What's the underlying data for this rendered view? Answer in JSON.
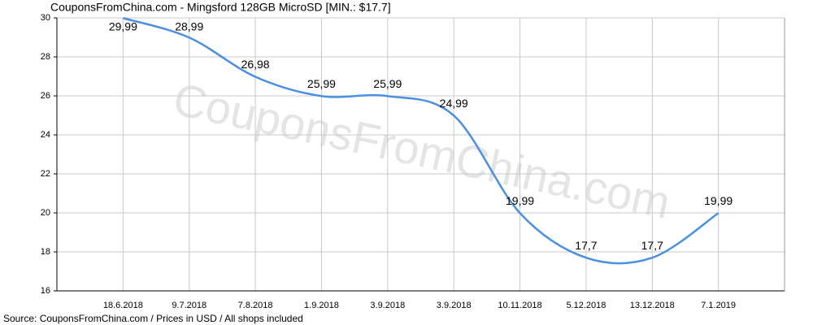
{
  "chart_data": {
    "type": "line",
    "title": "CouponsFromChina.com - Mingsford 128GB MicroSD [MIN.: $17.7]",
    "source": "Source: CouponsFromChina.com / Prices in USD / All shops included",
    "watermark": "CouponsFromChina.com",
    "categories": [
      "18.6.2018",
      "9.7.2018",
      "7.8.2018",
      "1.9.2018",
      "3.9.2018",
      "3.9.2018",
      "10.11.2018",
      "5.12.2018",
      "13.12.2018",
      "7.1.2019"
    ],
    "series": [
      {
        "color": "#4a8fe2",
        "values": [
          29.99,
          28.99,
          26.98,
          25.99,
          25.99,
          24.99,
          19.99,
          17.7,
          17.7,
          19.99
        ],
        "value_labels": [
          "29,99",
          "28,99",
          "26,98",
          "25,99",
          "25,99",
          "24,99",
          "19,99",
          "17,7",
          "17,7",
          "19,99"
        ]
      }
    ],
    "ylim": [
      16,
      30
    ],
    "yticks": [
      16,
      18,
      20,
      22,
      24,
      26,
      28,
      30
    ],
    "grid": true
  }
}
